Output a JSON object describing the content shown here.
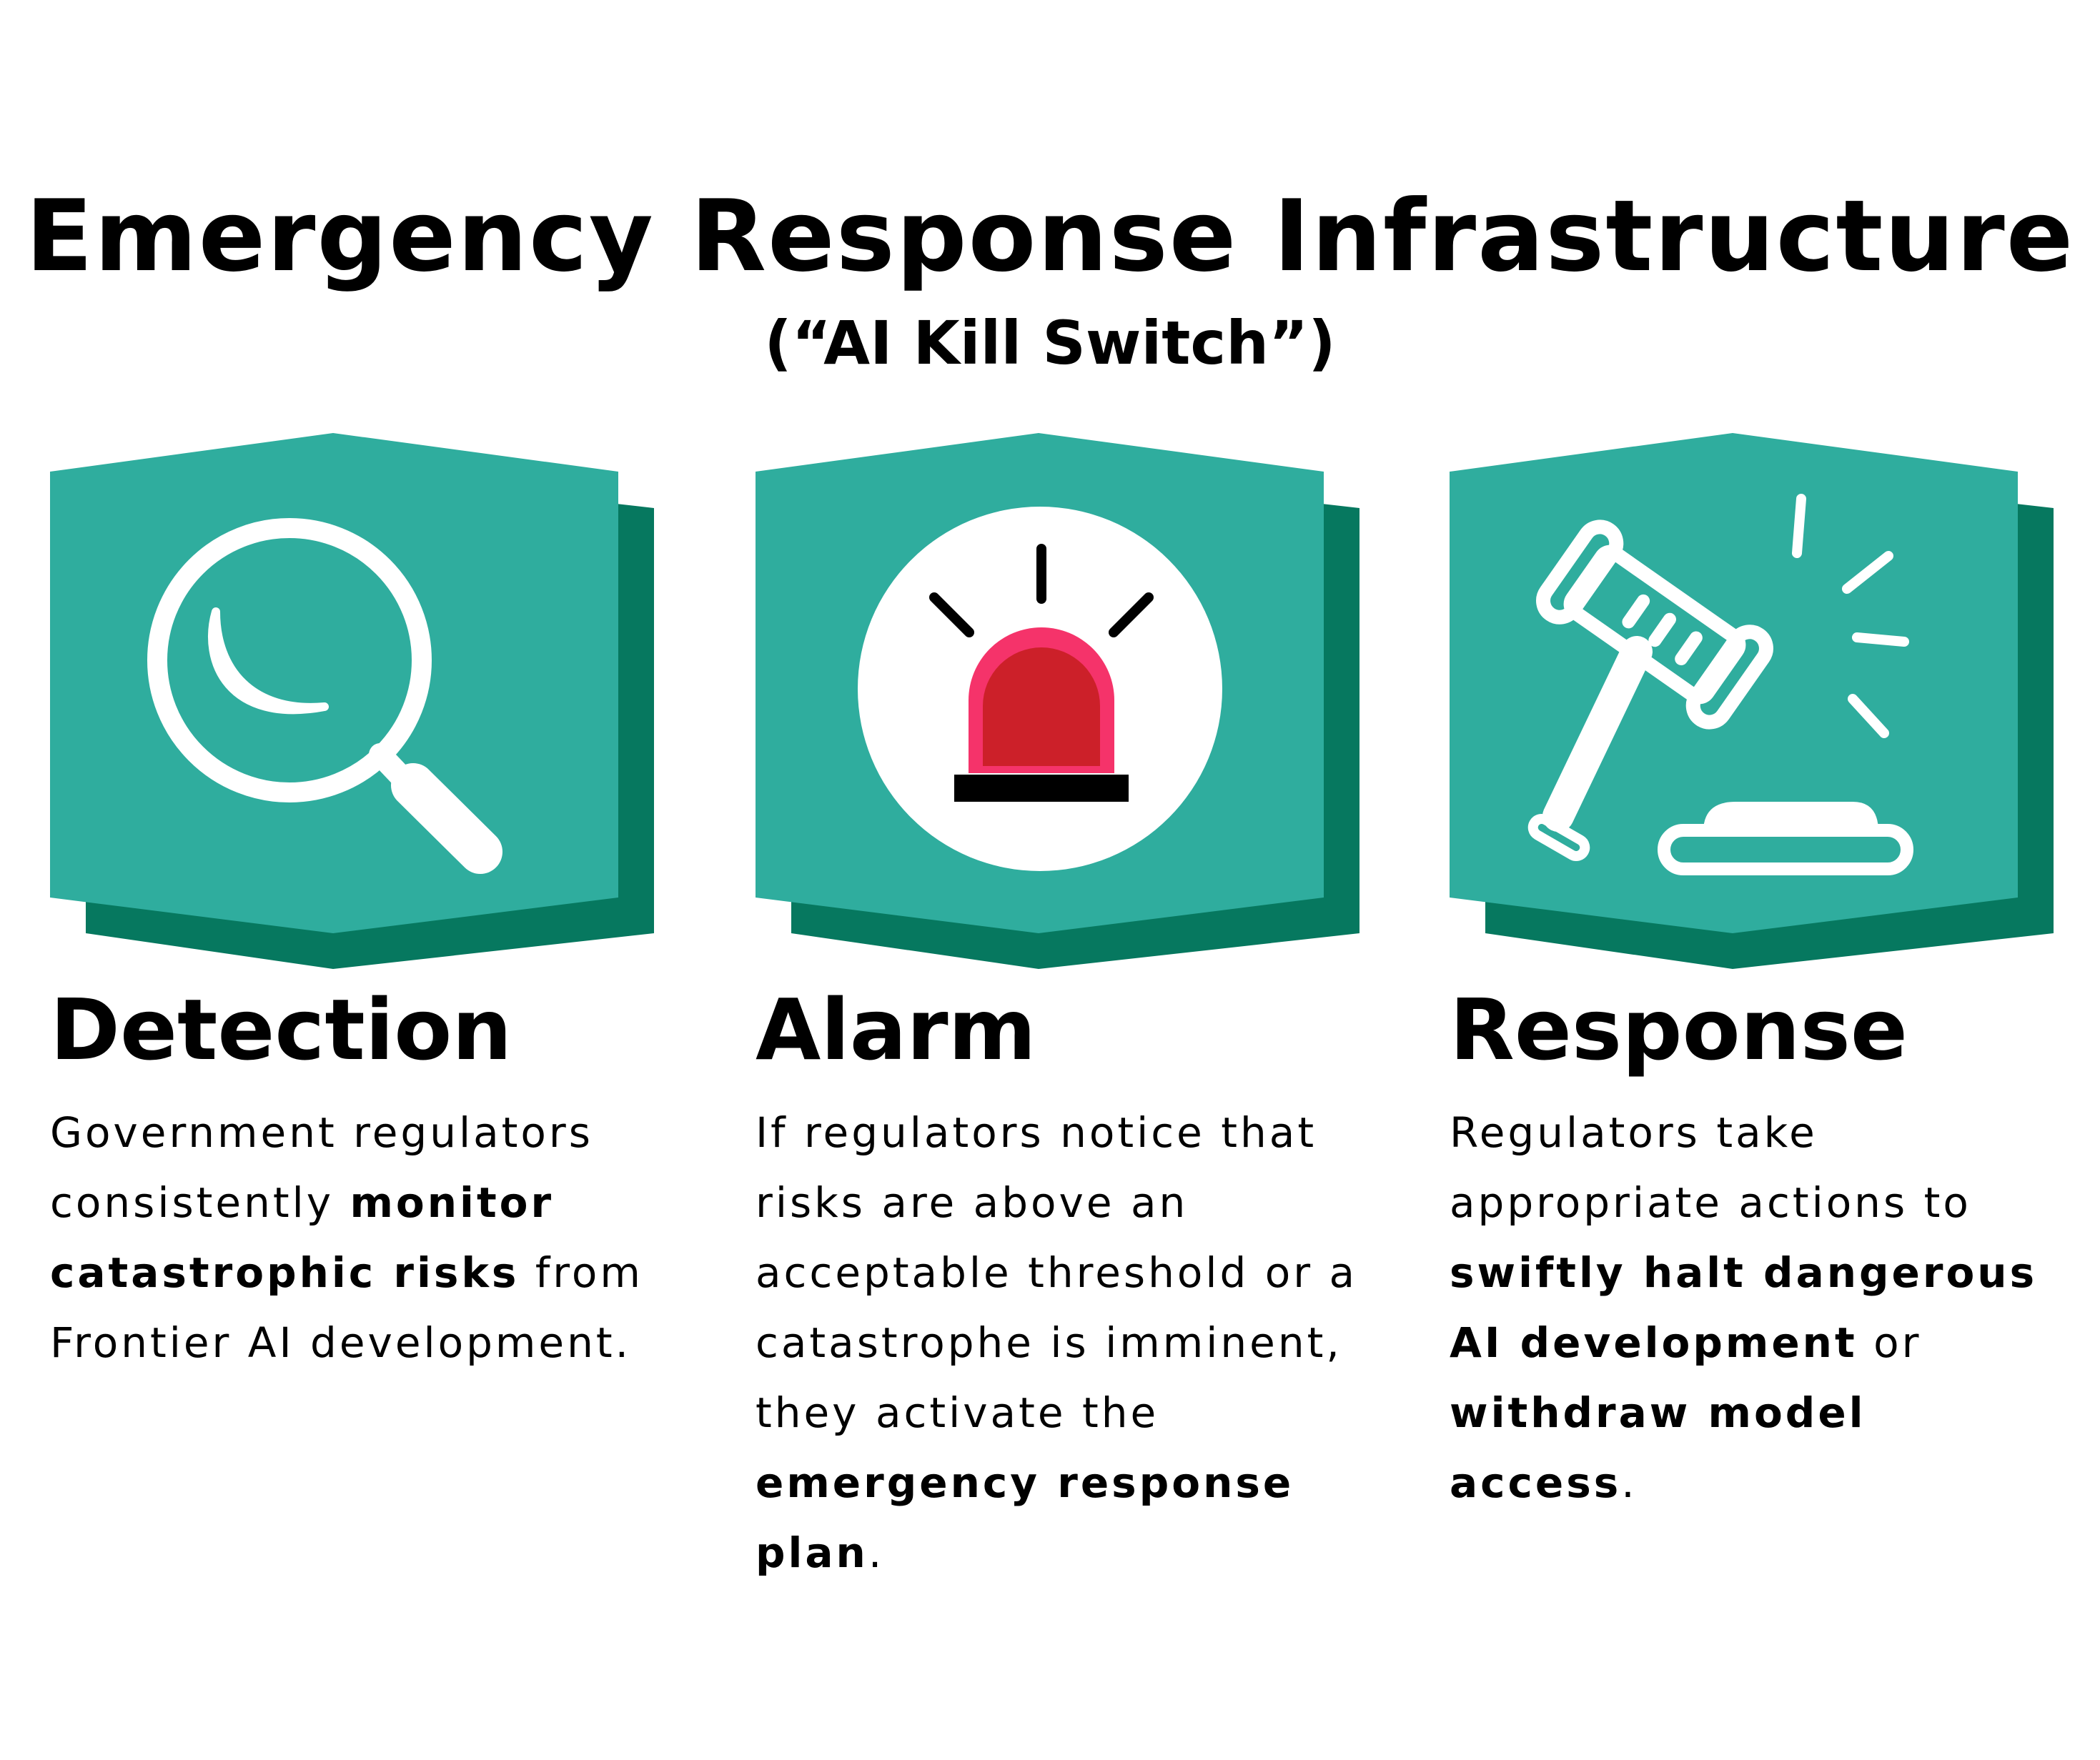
{
  "title": "Emergency Response Infrastructure",
  "subtitle": "(“AI Kill Switch”)",
  "colors": {
    "panel_front": "#2fad9e",
    "panel_shadow": "#06785f",
    "icon_white": "#ffffff",
    "alarm_dome_outer": "#f5336a",
    "alarm_dome_inner": "#cc2029",
    "alarm_base": "#000000"
  },
  "cards": [
    {
      "icon": "magnifying-glass-icon",
      "heading": "Detection",
      "text": {
        "p1": "Government regulators consistently ",
        "b1": "monitor catastrophic risks",
        "p2": " from Frontier AI development."
      }
    },
    {
      "icon": "alarm-siren-icon",
      "heading": "Alarm",
      "text": {
        "p1": "If regulators notice that risks are above an acceptable threshold or a catastrophe is imminent, they activate the ",
        "b1": "emergency response plan",
        "p2": "."
      }
    },
    {
      "icon": "gavel-icon",
      "heading": "Response",
      "text": {
        "p1": "Regulators take appropriate actions to ",
        "b1": "swiftly halt dangerous AI development",
        "p2": " or ",
        "b2": "withdraw model access",
        "p3": "."
      }
    }
  ]
}
